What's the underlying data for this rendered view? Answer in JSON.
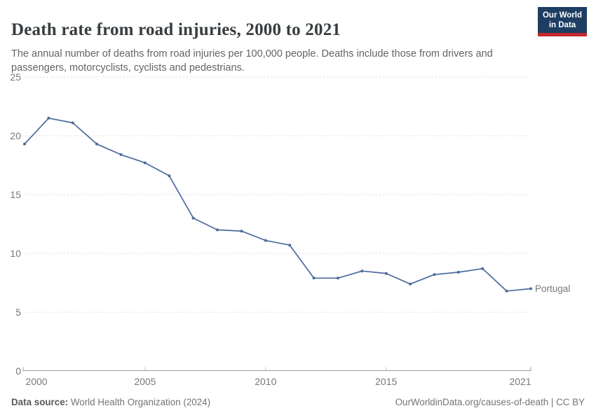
{
  "header": {
    "title": "Death rate from road injuries, 2000 to 2021",
    "subtitle": "The annual number of deaths from road injuries per 100,000 people. Deaths include those from drivers and passengers, motorcyclists, cyclists and pedestrians.",
    "logo": {
      "line1": "Our World",
      "line2": "in Data"
    }
  },
  "chart_data": {
    "type": "line",
    "title": "Death rate from road injuries, 2000 to 2021",
    "x": [
      2000,
      2001,
      2002,
      2003,
      2004,
      2005,
      2006,
      2007,
      2008,
      2009,
      2010,
      2011,
      2012,
      2013,
      2014,
      2015,
      2016,
      2017,
      2018,
      2019,
      2020,
      2021
    ],
    "series": [
      {
        "name": "Portugal",
        "color": "#4C6A9C",
        "values": [
          19.3,
          21.5,
          21.1,
          19.3,
          18.4,
          17.7,
          16.6,
          13.0,
          12.0,
          11.9,
          11.1,
          10.7,
          7.9,
          7.9,
          8.5,
          8.3,
          7.4,
          8.2,
          8.4,
          8.7,
          6.8,
          7.0
        ]
      }
    ],
    "xlabel": "",
    "ylabel": "",
    "ylim": [
      0,
      25
    ],
    "yticks": [
      0,
      5,
      10,
      15,
      20,
      25
    ],
    "xticks": [
      2000,
      2005,
      2010,
      2015,
      2021
    ],
    "grid": "horizontal-dashed",
    "legend_position": "end-of-line"
  },
  "footer": {
    "source_label": "Data source:",
    "source_value": " World Health Organization (2024)",
    "credit": "OurWorldinData.org/causes-of-death | CC BY"
  },
  "colors": {
    "line": "#4C6A9C",
    "gridline": "#dddddd",
    "axis": "#9e9e9e",
    "inner_tick": "#c2c2c2",
    "tick_label": "#787878",
    "logo_bg": "#1d3d63",
    "logo_stripe": "#c0282d"
  }
}
